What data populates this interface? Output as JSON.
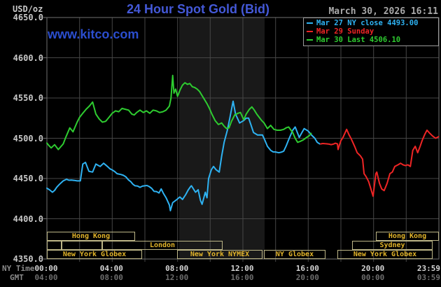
{
  "header": {
    "title": "24 Hour Spot Gold (Bid)",
    "datetime": "March 30, 2026 16:11",
    "unit_label": "USD/oz",
    "watermark": "www.kitco.com"
  },
  "legend": {
    "entries": [
      {
        "label": "Mar 27 NY close 4493.00",
        "color": "#2eb2f2"
      },
      {
        "label": "Mar 29 Sunday",
        "color": "#ee2525"
      },
      {
        "label": "Mar 30 Last 4506.10",
        "color": "#2ecc30"
      }
    ]
  },
  "axes": {
    "ny_time_label": "NY Time",
    "gmt_label": "GMT",
    "y_ticks": [
      "4650.0",
      "4600.0",
      "4550.0",
      "4500.0",
      "4450.0",
      "4400.0",
      "4350.0"
    ],
    "ny_ticks": [
      "00:00",
      "04:00",
      "08:00",
      "12:00",
      "16:00",
      "20:00",
      "23:59"
    ],
    "gmt_ticks": [
      "04:00",
      "08:00",
      "12:00",
      "16:00",
      "20:00",
      "00:00",
      "03:59"
    ]
  },
  "sessions": {
    "rows": [
      [
        {
          "label": "Hong Kong",
          "start_h": 0.0,
          "end_h": 5.4
        },
        {
          "label": "Hong Kong",
          "start_h": 20.14,
          "end_h": 24.0
        }
      ],
      [
        {
          "label": "",
          "start_h": 0.0,
          "end_h": 0.9
        },
        {
          "label": "",
          "start_h": 0.9,
          "end_h": 3.39
        },
        {
          "label": "London",
          "start_h": 3.39,
          "end_h": 10.76
        },
        {
          "label": "Sydney",
          "start_h": 18.69,
          "end_h": 23.61
        }
      ],
      [
        {
          "label": "New York Globex",
          "start_h": 0.0,
          "end_h": 5.83
        },
        {
          "label": "New York NYMEX",
          "start_h": 7.97,
          "end_h": 13.2
        },
        {
          "label": "NY Globex",
          "start_h": 13.29,
          "end_h": 17.06
        },
        {
          "label": "New York Globex",
          "start_h": 17.79,
          "end_h": 23.61
        }
      ]
    ]
  },
  "chart_data": {
    "type": "line",
    "title": "24 Hour Spot Gold (Bid)",
    "ylabel": "USD/oz",
    "ylim": [
      4350,
      4650
    ],
    "y_gridline_step": 50,
    "xlim_hours": [
      0,
      24
    ],
    "x_gridline_step_hours": 2,
    "shaded_region_hours": [
      8.1,
      13.33
    ],
    "grid": true,
    "legend_position": "top-right",
    "series": [
      {
        "name": "Mar 27",
        "color": "#2eb2f2",
        "points": [
          [
            0,
            4438
          ],
          [
            0.34,
            4433
          ],
          [
            0.6,
            4439
          ],
          [
            1.0,
            4447
          ],
          [
            1.2,
            4449
          ],
          [
            1.5,
            4448
          ],
          [
            1.85,
            4447
          ],
          [
            2.05,
            4447
          ],
          [
            2.2,
            4468
          ],
          [
            2.36,
            4470
          ],
          [
            2.57,
            4459
          ],
          [
            2.8,
            4458
          ],
          [
            3.0,
            4468
          ],
          [
            3.26,
            4465
          ],
          [
            3.47,
            4469
          ],
          [
            3.86,
            4462
          ],
          [
            4.3,
            4456
          ],
          [
            4.54,
            4455
          ],
          [
            4.84,
            4452
          ],
          [
            5.14,
            4446
          ],
          [
            5.4,
            4441
          ],
          [
            5.7,
            4439
          ],
          [
            6.0,
            4441
          ],
          [
            6.26,
            4440
          ],
          [
            6.56,
            4434
          ],
          [
            6.86,
            4432
          ],
          [
            7.0,
            4437
          ],
          [
            7.3,
            4426
          ],
          [
            7.5,
            4417
          ],
          [
            7.56,
            4410
          ],
          [
            7.7,
            4420
          ],
          [
            7.9,
            4423
          ],
          [
            8.14,
            4427
          ],
          [
            8.3,
            4424
          ],
          [
            8.5,
            4430
          ],
          [
            8.8,
            4440
          ],
          [
            8.85,
            4441
          ],
          [
            9.1,
            4433
          ],
          [
            9.26,
            4436
          ],
          [
            9.4,
            4423
          ],
          [
            9.5,
            4418
          ],
          [
            9.7,
            4433
          ],
          [
            9.8,
            4426
          ],
          [
            9.9,
            4450
          ],
          [
            10.07,
            4461
          ],
          [
            10.2,
            4465
          ],
          [
            10.35,
            4461
          ],
          [
            10.55,
            4458
          ],
          [
            10.7,
            4478
          ],
          [
            10.85,
            4495
          ],
          [
            11.05,
            4510
          ],
          [
            11.2,
            4525
          ],
          [
            11.4,
            4546
          ],
          [
            11.55,
            4530
          ],
          [
            11.8,
            4519
          ],
          [
            12.05,
            4522
          ],
          [
            12.2,
            4525
          ],
          [
            12.35,
            4525
          ],
          [
            12.65,
            4507
          ],
          [
            12.9,
            4504
          ],
          [
            13.2,
            4504
          ],
          [
            13.5,
            4490
          ],
          [
            13.7,
            4485
          ],
          [
            14.0,
            4483
          ],
          [
            14.2,
            4482
          ],
          [
            14.5,
            4484
          ],
          [
            14.8,
            4498
          ],
          [
            15.05,
            4510
          ],
          [
            15.2,
            4514
          ],
          [
            15.45,
            4501
          ],
          [
            15.75,
            4512
          ],
          [
            16.0,
            4509
          ],
          [
            16.2,
            4504
          ],
          [
            16.4,
            4500
          ],
          [
            16.55,
            4495
          ],
          [
            16.7,
            4493
          ]
        ]
      },
      {
        "name": "Mar 29",
        "color": "#ee2525",
        "points": [
          [
            16.76,
            4493
          ],
          [
            17.79,
            4493
          ],
          [
            17.83,
            4486
          ],
          [
            17.9,
            4491
          ],
          [
            18.0,
            4497
          ],
          [
            18.13,
            4501
          ],
          [
            18.35,
            4511
          ],
          [
            18.64,
            4499
          ],
          [
            18.86,
            4489
          ],
          [
            19.0,
            4482
          ],
          [
            19.1,
            4480
          ],
          [
            19.2,
            4478
          ],
          [
            19.33,
            4474
          ],
          [
            19.42,
            4456
          ],
          [
            19.55,
            4452
          ],
          [
            19.7,
            4446
          ],
          [
            19.85,
            4436
          ],
          [
            19.97,
            4428
          ],
          [
            20.14,
            4456
          ],
          [
            20.2,
            4458
          ],
          [
            20.36,
            4444
          ],
          [
            20.5,
            4437
          ],
          [
            20.65,
            4435
          ],
          [
            20.83,
            4444
          ],
          [
            21.0,
            4456
          ],
          [
            21.15,
            4458
          ],
          [
            21.3,
            4465
          ],
          [
            21.5,
            4467
          ],
          [
            21.65,
            4469
          ],
          [
            21.8,
            4467
          ],
          [
            21.95,
            4466
          ],
          [
            22.1,
            4467
          ],
          [
            22.25,
            4465
          ],
          [
            22.4,
            4485
          ],
          [
            22.55,
            4490
          ],
          [
            22.7,
            4482
          ],
          [
            22.85,
            4490
          ],
          [
            22.97,
            4497
          ],
          [
            23.14,
            4505
          ],
          [
            23.27,
            4510
          ],
          [
            23.4,
            4507
          ],
          [
            23.6,
            4503
          ],
          [
            23.8,
            4500
          ],
          [
            23.9,
            4501
          ],
          [
            23.98,
            4502
          ]
        ]
      },
      {
        "name": "Mar 30",
        "color": "#2ecc30",
        "points": [
          [
            0,
            4494
          ],
          [
            0.26,
            4488
          ],
          [
            0.47,
            4492
          ],
          [
            0.7,
            4486
          ],
          [
            1.0,
            4493
          ],
          [
            1.3,
            4508
          ],
          [
            1.4,
            4513
          ],
          [
            1.6,
            4508
          ],
          [
            1.85,
            4520
          ],
          [
            2.0,
            4526
          ],
          [
            2.2,
            4531
          ],
          [
            2.4,
            4536
          ],
          [
            2.6,
            4540
          ],
          [
            2.8,
            4545
          ],
          [
            3.0,
            4530
          ],
          [
            3.2,
            4524
          ],
          [
            3.4,
            4520
          ],
          [
            3.6,
            4521
          ],
          [
            3.8,
            4526
          ],
          [
            4.0,
            4531
          ],
          [
            4.2,
            4534
          ],
          [
            4.4,
            4533
          ],
          [
            4.6,
            4537
          ],
          [
            4.8,
            4536
          ],
          [
            5.0,
            4535
          ],
          [
            5.2,
            4530
          ],
          [
            5.35,
            4529
          ],
          [
            5.5,
            4532
          ],
          [
            5.7,
            4535
          ],
          [
            5.9,
            4532
          ],
          [
            6.1,
            4534
          ],
          [
            6.3,
            4531
          ],
          [
            6.5,
            4535
          ],
          [
            6.7,
            4534
          ],
          [
            6.9,
            4532
          ],
          [
            7.1,
            4533
          ],
          [
            7.3,
            4535
          ],
          [
            7.5,
            4540
          ],
          [
            7.6,
            4550
          ],
          [
            7.7,
            4578
          ],
          [
            7.78,
            4556
          ],
          [
            7.88,
            4561
          ],
          [
            8.0,
            4552
          ],
          [
            8.15,
            4560
          ],
          [
            8.3,
            4566
          ],
          [
            8.45,
            4569
          ],
          [
            8.6,
            4567
          ],
          [
            8.75,
            4568
          ],
          [
            8.9,
            4564
          ],
          [
            9.05,
            4563
          ],
          [
            9.2,
            4561
          ],
          [
            9.35,
            4558
          ],
          [
            9.5,
            4553
          ],
          [
            9.65,
            4548
          ],
          [
            9.8,
            4543
          ],
          [
            9.95,
            4537
          ],
          [
            10.1,
            4530
          ],
          [
            10.3,
            4522
          ],
          [
            10.5,
            4517
          ],
          [
            10.7,
            4519
          ],
          [
            10.85,
            4515
          ],
          [
            11.0,
            4512
          ],
          [
            11.15,
            4513
          ],
          [
            11.3,
            4521
          ],
          [
            11.5,
            4529
          ],
          [
            11.7,
            4531
          ],
          [
            11.85,
            4532
          ],
          [
            12.05,
            4523
          ],
          [
            12.2,
            4530
          ],
          [
            12.4,
            4536
          ],
          [
            12.55,
            4539
          ],
          [
            12.7,
            4535
          ],
          [
            12.85,
            4530
          ],
          [
            13.0,
            4526
          ],
          [
            13.15,
            4522
          ],
          [
            13.3,
            4519
          ],
          [
            13.5,
            4512
          ],
          [
            13.7,
            4516
          ],
          [
            13.9,
            4511
          ],
          [
            14.1,
            4510
          ],
          [
            14.3,
            4510
          ],
          [
            14.5,
            4511
          ],
          [
            14.65,
            4513
          ],
          [
            14.8,
            4514
          ],
          [
            15.05,
            4507
          ],
          [
            15.2,
            4500
          ],
          [
            15.35,
            4495
          ],
          [
            15.5,
            4496
          ],
          [
            15.7,
            4498
          ],
          [
            15.9,
            4501
          ],
          [
            16.05,
            4503
          ],
          [
            16.18,
            4506.1
          ]
        ]
      }
    ]
  },
  "style": {
    "background": "#000000",
    "plot_frame_color": "#6f6f6f",
    "gridline_color": "#464646",
    "shaded_band_color": "#191919",
    "session_border_color": "#bdb687",
    "session_text_color": "#e3b52a",
    "title_color": "#4459d8",
    "watermark_color": "#2b4ecf",
    "datetime_color": "#a9a9a9"
  }
}
